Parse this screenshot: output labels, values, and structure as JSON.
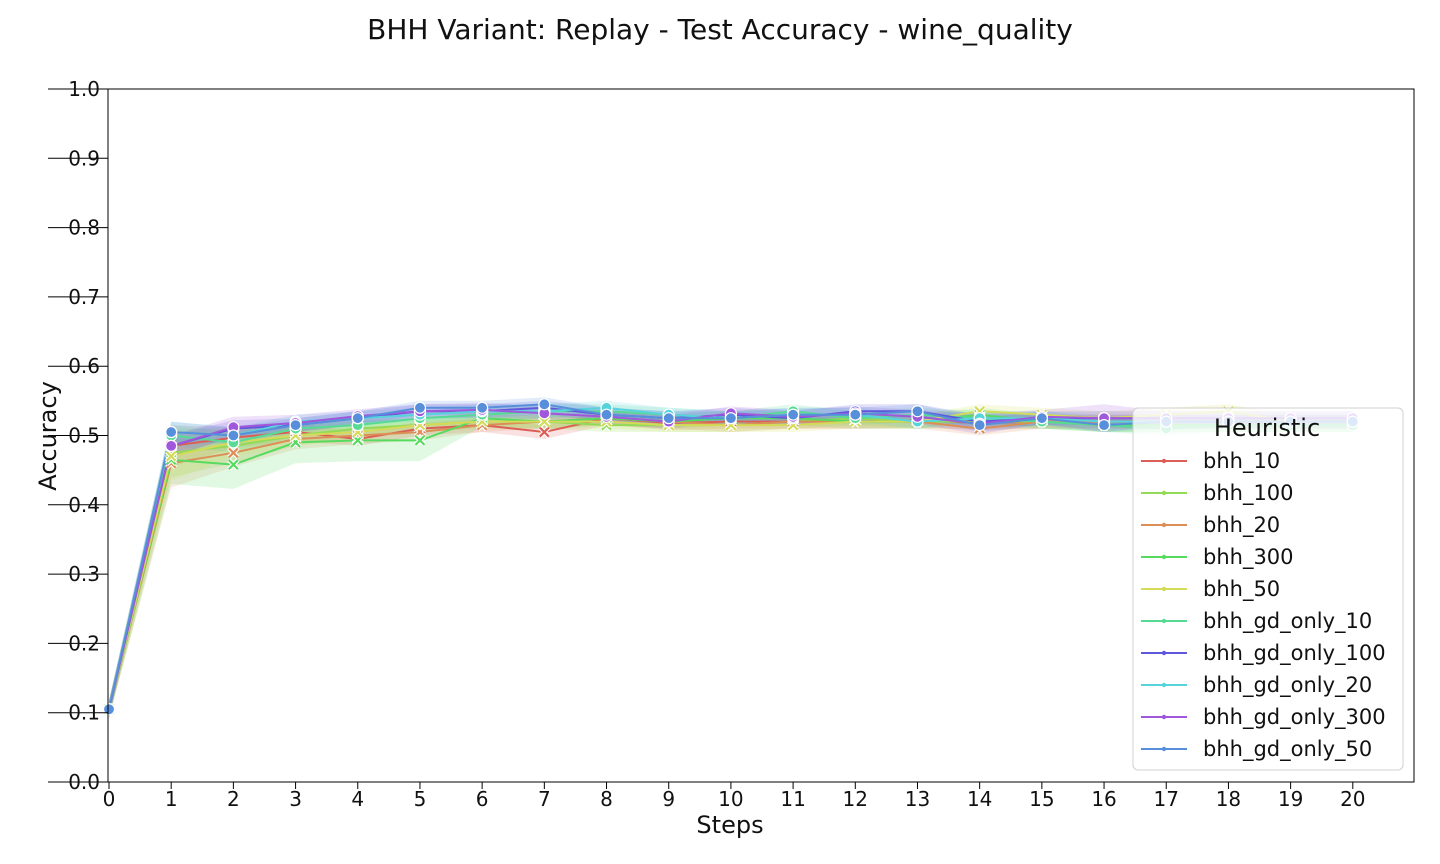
{
  "chart_data": {
    "type": "line",
    "title": "BHH Variant: Replay - Test Accuracy - wine_quality",
    "xlabel": "Steps",
    "ylabel": "Accuracy",
    "xlim": [
      0,
      21
    ],
    "ylim": [
      0,
      1
    ],
    "xticks": [
      0,
      1,
      2,
      3,
      4,
      5,
      6,
      7,
      8,
      9,
      10,
      11,
      12,
      13,
      14,
      15,
      16,
      17,
      18,
      19,
      20
    ],
    "yticks": [
      "0.0",
      "0.1",
      "0.2",
      "0.3",
      "0.4",
      "0.5",
      "0.6",
      "0.7",
      "0.8",
      "0.9",
      "1.0"
    ],
    "legend_title": "Heuristic",
    "legend_position": "lower-right",
    "grid": false,
    "x": [
      0,
      1,
      2,
      3,
      4,
      5,
      6,
      7,
      8,
      9,
      10,
      11,
      12,
      13,
      14,
      15,
      16,
      17,
      18,
      19,
      20
    ],
    "series": [
      {
        "name": "bhh_10",
        "color": "#db5f57",
        "marker": "x",
        "values": [
          0.105,
          0.485,
          0.497,
          0.505,
          0.495,
          0.51,
          0.515,
          0.505,
          0.525,
          0.518,
          0.52,
          0.52,
          0.52,
          0.522,
          0.518,
          0.52,
          0.52,
          0.52,
          0.52,
          0.52,
          0.52
        ],
        "band": [
          0.012,
          0.03,
          0.015,
          0.013,
          0.01,
          0.01,
          0.01,
          0.01,
          0.01,
          0.01,
          0.01,
          0.01,
          0.01,
          0.01,
          0.01,
          0.01,
          0.01,
          0.01,
          0.01,
          0.01,
          0.01
        ]
      },
      {
        "name": "bhh_100",
        "color": "#91db57",
        "marker": "x",
        "values": [
          0.105,
          0.475,
          0.485,
          0.5,
          0.51,
          0.515,
          0.52,
          0.52,
          0.515,
          0.515,
          0.515,
          0.52,
          0.525,
          0.52,
          0.52,
          0.52,
          0.515,
          0.515,
          0.515,
          0.515,
          0.515
        ],
        "band": [
          0.012,
          0.035,
          0.025,
          0.015,
          0.012,
          0.01,
          0.01,
          0.01,
          0.01,
          0.01,
          0.01,
          0.01,
          0.01,
          0.01,
          0.01,
          0.01,
          0.01,
          0.01,
          0.01,
          0.01,
          0.01
        ]
      },
      {
        "name": "bhh_20",
        "color": "#db8f57",
        "marker": "x",
        "values": [
          0.105,
          0.46,
          0.475,
          0.495,
          0.5,
          0.505,
          0.515,
          0.52,
          0.525,
          0.52,
          0.515,
          0.52,
          0.52,
          0.52,
          0.51,
          0.52,
          0.52,
          0.52,
          0.52,
          0.52,
          0.52
        ],
        "band": [
          0.012,
          0.035,
          0.02,
          0.015,
          0.012,
          0.012,
          0.01,
          0.01,
          0.01,
          0.01,
          0.01,
          0.01,
          0.01,
          0.01,
          0.01,
          0.01,
          0.01,
          0.01,
          0.01,
          0.01,
          0.01
        ]
      },
      {
        "name": "bhh_300",
        "color": "#57db5f",
        "marker": "x",
        "values": [
          0.105,
          0.465,
          0.458,
          0.49,
          0.493,
          0.493,
          0.525,
          0.52,
          0.525,
          0.52,
          0.525,
          0.525,
          0.52,
          0.52,
          0.53,
          0.52,
          0.515,
          0.515,
          0.515,
          0.515,
          0.515
        ],
        "band": [
          0.012,
          0.035,
          0.035,
          0.03,
          0.03,
          0.03,
          0.012,
          0.01,
          0.01,
          0.01,
          0.01,
          0.01,
          0.01,
          0.01,
          0.01,
          0.01,
          0.01,
          0.01,
          0.01,
          0.01,
          0.01
        ]
      },
      {
        "name": "bhh_50",
        "color": "#d3db57",
        "marker": "x",
        "values": [
          0.105,
          0.47,
          0.49,
          0.5,
          0.505,
          0.515,
          0.52,
          0.52,
          0.52,
          0.515,
          0.515,
          0.515,
          0.52,
          0.52,
          0.535,
          0.53,
          0.525,
          0.53,
          0.535,
          0.52,
          0.52
        ],
        "band": [
          0.012,
          0.035,
          0.02,
          0.015,
          0.012,
          0.01,
          0.01,
          0.01,
          0.01,
          0.01,
          0.01,
          0.01,
          0.01,
          0.01,
          0.01,
          0.01,
          0.01,
          0.01,
          0.01,
          0.01,
          0.01
        ]
      },
      {
        "name": "bhh_gd_only_10",
        "color": "#57db94",
        "marker": "o",
        "values": [
          0.105,
          0.5,
          0.49,
          0.51,
          0.515,
          0.525,
          0.53,
          0.535,
          0.535,
          0.53,
          0.525,
          0.535,
          0.525,
          0.53,
          0.525,
          0.52,
          0.515,
          0.51,
          0.515,
          0.515,
          0.515
        ],
        "band": [
          0.012,
          0.015,
          0.015,
          0.012,
          0.01,
          0.01,
          0.01,
          0.01,
          0.01,
          0.01,
          0.01,
          0.01,
          0.01,
          0.01,
          0.01,
          0.01,
          0.01,
          0.01,
          0.01,
          0.01,
          0.01
        ]
      },
      {
        "name": "bhh_gd_only_100",
        "color": "#5f57db",
        "marker": "o",
        "values": [
          0.105,
          0.485,
          0.51,
          0.515,
          0.525,
          0.535,
          0.535,
          0.54,
          0.53,
          0.525,
          0.53,
          0.525,
          0.535,
          0.535,
          0.52,
          0.525,
          0.525,
          0.525,
          0.525,
          0.525,
          0.525
        ],
        "band": [
          0.012,
          0.015,
          0.012,
          0.01,
          0.01,
          0.01,
          0.01,
          0.01,
          0.01,
          0.01,
          0.01,
          0.01,
          0.01,
          0.01,
          0.01,
          0.01,
          0.01,
          0.01,
          0.01,
          0.01,
          0.01
        ]
      },
      {
        "name": "bhh_gd_only_20",
        "color": "#57d3db",
        "marker": "o",
        "values": [
          0.105,
          0.505,
          0.5,
          0.52,
          0.525,
          0.53,
          0.535,
          0.535,
          0.54,
          0.53,
          0.525,
          0.53,
          0.53,
          0.52,
          0.525,
          0.525,
          0.52,
          0.52,
          0.52,
          0.52,
          0.52
        ],
        "band": [
          0.012,
          0.015,
          0.012,
          0.01,
          0.01,
          0.01,
          0.01,
          0.01,
          0.01,
          0.01,
          0.01,
          0.01,
          0.01,
          0.01,
          0.01,
          0.01,
          0.01,
          0.01,
          0.01,
          0.01,
          0.01
        ]
      },
      {
        "name": "bhh_gd_only_300",
        "color": "#a157db",
        "marker": "o",
        "values": [
          0.105,
          0.485,
          0.512,
          0.518,
          0.528,
          0.535,
          0.537,
          0.532,
          0.527,
          0.52,
          0.532,
          0.527,
          0.532,
          0.527,
          0.517,
          0.527,
          0.525,
          0.525,
          0.525,
          0.525,
          0.525
        ],
        "band": [
          0.012,
          0.015,
          0.015,
          0.012,
          0.01,
          0.01,
          0.01,
          0.01,
          0.01,
          0.01,
          0.01,
          0.01,
          0.01,
          0.01,
          0.015,
          0.01,
          0.02,
          0.01,
          0.01,
          0.01,
          0.01
        ]
      },
      {
        "name": "bhh_gd_only_50",
        "color": "#578fdb",
        "marker": "o",
        "values": [
          0.105,
          0.505,
          0.5,
          0.515,
          0.525,
          0.54,
          0.54,
          0.545,
          0.53,
          0.525,
          0.525,
          0.53,
          0.53,
          0.535,
          0.515,
          0.525,
          0.515,
          0.52,
          0.52,
          0.52,
          0.52
        ],
        "band": [
          0.012,
          0.015,
          0.012,
          0.01,
          0.01,
          0.01,
          0.01,
          0.01,
          0.01,
          0.01,
          0.01,
          0.01,
          0.01,
          0.01,
          0.01,
          0.01,
          0.01,
          0.01,
          0.01,
          0.01,
          0.01
        ]
      }
    ]
  }
}
